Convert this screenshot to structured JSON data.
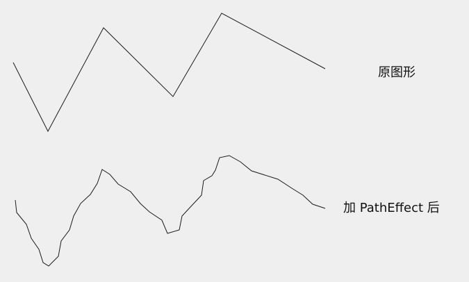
{
  "labels": {
    "original": "原图形",
    "with_effect": "加 PathEffect 后"
  },
  "colors": {
    "background": "#efefef",
    "stroke": "#1a1a1a",
    "text": "#111111"
  }
}
